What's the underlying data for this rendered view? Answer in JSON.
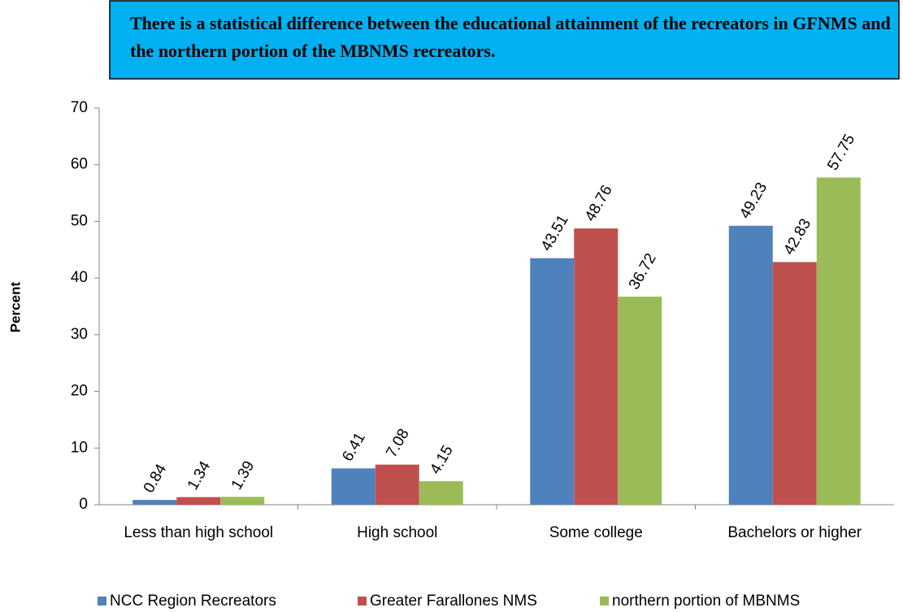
{
  "chart_data": {
    "type": "bar",
    "annotation": "There is a statistical difference between the educational attainment of the recreators in GFNMS and the northern portion of the MBNMS recreators.",
    "ylabel": "Percent",
    "categories": [
      "Less than high school",
      "High school",
      "Some college",
      "Bachelors or higher"
    ],
    "series": [
      {
        "name": "NCC Region Recreators",
        "color": "#4f81bd",
        "values": [
          0.84,
          6.41,
          43.51,
          49.23
        ]
      },
      {
        "name": "Greater Farallones NMS",
        "color": "#c0504d",
        "values": [
          1.34,
          7.08,
          48.76,
          42.83
        ]
      },
      {
        "name": "northern portion of MBNMS",
        "color": "#9bbb59",
        "values": [
          1.39,
          4.15,
          36.72,
          57.75
        ]
      }
    ],
    "ylim": [
      0,
      70
    ],
    "yticks": [
      0,
      10,
      20,
      30,
      40,
      50,
      60,
      70
    ],
    "grid": false,
    "legend": "bottom",
    "data_labels": true
  }
}
